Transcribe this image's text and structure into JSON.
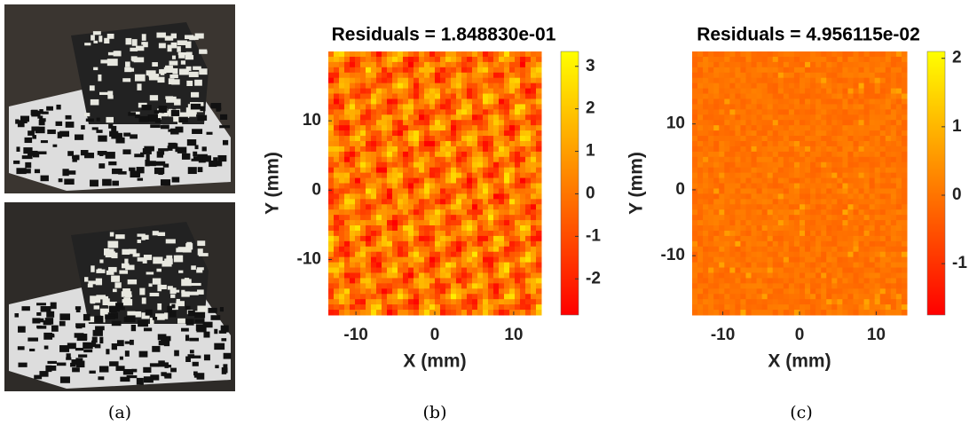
{
  "captions": [
    "(a)",
    "(b)",
    "(c)"
  ],
  "chart_data": [
    {
      "type": "heatmap",
      "title": "Residuals = 1.848830e-01",
      "x_label": "X (mm)",
      "y_label": "Y (mm)",
      "xlim": [
        -13.5,
        13.5
      ],
      "xticks": [
        -10,
        0,
        10
      ],
      "ylim": [
        -18,
        20
      ],
      "yticks": [
        -10,
        0,
        10
      ],
      "colormap": "autumn",
      "clim": [
        -2.85,
        3.35
      ],
      "cticks": [
        -2,
        -1,
        0,
        1,
        2,
        3
      ]
    },
    {
      "type": "heatmap",
      "title": "Residuals = 4.956115e-02",
      "x_label": "X (mm)",
      "y_label": "Y (mm)",
      "xlim": [
        -14,
        14
      ],
      "xticks": [
        -10,
        0,
        10
      ],
      "ylim": [
        -19,
        21
      ],
      "yticks": [
        -10,
        0,
        10
      ],
      "colormap": "autumn",
      "clim": [
        -1.75,
        2.1
      ],
      "cticks": [
        -1,
        0,
        1,
        2
      ]
    }
  ]
}
